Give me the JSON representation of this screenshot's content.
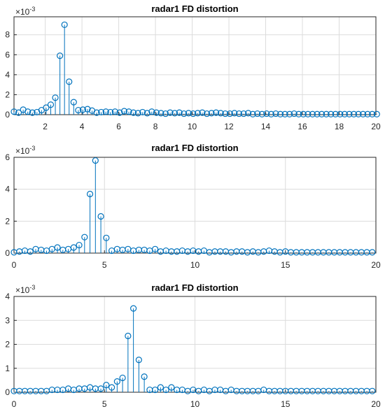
{
  "colors": {
    "series": "#0072BD",
    "axis": "#262626",
    "grid": "#dcdcdc"
  },
  "chart_data": [
    {
      "type": "stem",
      "title": "radar1 FD distortion",
      "y_exponent_label": "×10",
      "y_exponent_power": "-3",
      "xlim": [
        0.3,
        20
      ],
      "ylim": [
        0,
        9.8
      ],
      "xticks": [
        2,
        4,
        6,
        8,
        10,
        12,
        14,
        16,
        18,
        20
      ],
      "xtick_labels": [
        "2",
        "4",
        "6",
        "8",
        "10",
        "12",
        "14",
        "16",
        "18",
        "20"
      ],
      "yticks": [
        0,
        2,
        4,
        6,
        8
      ],
      "ytick_labels": [
        "0",
        "2",
        "4",
        "6",
        "8"
      ],
      "grid": true,
      "x": [
        0.3,
        0.55,
        0.8,
        1.05,
        1.3,
        1.55,
        1.8,
        2.05,
        2.3,
        2.55,
        2.8,
        3.05,
        3.3,
        3.55,
        3.8,
        4.05,
        4.3,
        4.55,
        4.8,
        5.05,
        5.3,
        5.55,
        5.8,
        6.05,
        6.3,
        6.55,
        6.8,
        7.05,
        7.3,
        7.55,
        7.8,
        8.05,
        8.3,
        8.55,
        8.8,
        9.05,
        9.3,
        9.55,
        9.8,
        10.05,
        10.3,
        10.55,
        10.8,
        11.05,
        11.3,
        11.55,
        11.8,
        12.05,
        12.3,
        12.55,
        12.8,
        13.05,
        13.3,
        13.55,
        13.8,
        14.05,
        14.3,
        14.55,
        14.8,
        15.05,
        15.3,
        15.55,
        15.8,
        16.05,
        16.3,
        16.55,
        16.8,
        17.05,
        17.3,
        17.55,
        17.8,
        18.05,
        18.3,
        18.55,
        18.8,
        19.05,
        19.3,
        19.55,
        19.8,
        20.05
      ],
      "values": [
        0.3,
        0.2,
        0.5,
        0.3,
        0.2,
        0.25,
        0.45,
        0.7,
        1.0,
        1.7,
        5.9,
        9.0,
        3.3,
        1.25,
        0.45,
        0.5,
        0.55,
        0.4,
        0.2,
        0.25,
        0.3,
        0.25,
        0.3,
        0.2,
        0.35,
        0.3,
        0.2,
        0.15,
        0.25,
        0.15,
        0.3,
        0.2,
        0.15,
        0.1,
        0.2,
        0.15,
        0.2,
        0.1,
        0.15,
        0.1,
        0.15,
        0.2,
        0.1,
        0.15,
        0.2,
        0.15,
        0.1,
        0.1,
        0.15,
        0.1,
        0.1,
        0.15,
        0.05,
        0.1,
        0.05,
        0.1,
        0.05,
        0.1,
        0.05,
        0.05,
        0.05,
        0.1,
        0.05,
        0.05,
        0.05,
        0.05,
        0.05,
        0.05,
        0.05,
        0.05,
        0.05,
        0.05,
        0.05,
        0.05,
        0.05,
        0.05,
        0.05,
        0.05,
        0.05,
        0.05
      ]
    },
    {
      "type": "stem",
      "title": "radar1 FD distortion",
      "y_exponent_label": "×10",
      "y_exponent_power": "-3",
      "xlim": [
        0,
        20
      ],
      "ylim": [
        0,
        6
      ],
      "xticks": [
        0,
        5,
        10,
        15,
        20
      ],
      "xtick_labels": [
        "0",
        "5",
        "10",
        "15",
        "20"
      ],
      "yticks": [
        0,
        2,
        4,
        6
      ],
      "ytick_labels": [
        "0",
        "2",
        "4",
        "6"
      ],
      "grid": true,
      "x": [
        0,
        0.3,
        0.6,
        0.9,
        1.2,
        1.5,
        1.8,
        2.1,
        2.4,
        2.7,
        3.0,
        3.3,
        3.6,
        3.9,
        4.2,
        4.5,
        4.8,
        5.1,
        5.4,
        5.7,
        6.0,
        6.3,
        6.6,
        6.9,
        7.2,
        7.5,
        7.8,
        8.1,
        8.4,
        8.7,
        9.0,
        9.3,
        9.6,
        9.9,
        10.2,
        10.5,
        10.8,
        11.1,
        11.4,
        11.7,
        12.0,
        12.3,
        12.6,
        12.9,
        13.2,
        13.5,
        13.8,
        14.1,
        14.4,
        14.7,
        15.0,
        15.3,
        15.6,
        15.9,
        16.2,
        16.5,
        16.8,
        17.1,
        17.4,
        17.7,
        18.0,
        18.3,
        18.6,
        18.9,
        19.2,
        19.5,
        19.8
      ],
      "values": [
        0.05,
        0.1,
        0.15,
        0.1,
        0.25,
        0.2,
        0.15,
        0.25,
        0.35,
        0.2,
        0.25,
        0.35,
        0.5,
        1.0,
        3.7,
        5.8,
        2.3,
        0.95,
        0.15,
        0.25,
        0.2,
        0.25,
        0.15,
        0.2,
        0.2,
        0.15,
        0.25,
        0.1,
        0.15,
        0.1,
        0.1,
        0.15,
        0.1,
        0.15,
        0.1,
        0.15,
        0.05,
        0.1,
        0.1,
        0.1,
        0.05,
        0.1,
        0.1,
        0.05,
        0.1,
        0.05,
        0.1,
        0.15,
        0.1,
        0.05,
        0.1,
        0.05,
        0.05,
        0.05,
        0.05,
        0.05,
        0.05,
        0.05,
        0.05,
        0.05,
        0.05,
        0.05,
        0.05,
        0.05,
        0.05,
        0.05,
        0.05
      ]
    },
    {
      "type": "stem",
      "title": "radar1 FD distortion",
      "y_exponent_label": "×10",
      "y_exponent_power": "-3",
      "xlim": [
        0,
        20
      ],
      "ylim": [
        0,
        4
      ],
      "xticks": [
        0,
        5,
        10,
        15,
        20
      ],
      "xtick_labels": [
        "0",
        "5",
        "10",
        "15",
        "20"
      ],
      "yticks": [
        0,
        1,
        2,
        3,
        4
      ],
      "ytick_labels": [
        "0",
        "1",
        "2",
        "3",
        "4"
      ],
      "grid": true,
      "x": [
        0,
        0.3,
        0.6,
        0.9,
        1.2,
        1.5,
        1.8,
        2.1,
        2.4,
        2.7,
        3.0,
        3.3,
        3.6,
        3.9,
        4.2,
        4.5,
        4.8,
        5.1,
        5.4,
        5.7,
        6.0,
        6.3,
        6.6,
        6.9,
        7.2,
        7.5,
        7.8,
        8.1,
        8.4,
        8.7,
        9.0,
        9.3,
        9.6,
        9.9,
        10.2,
        10.5,
        10.8,
        11.1,
        11.4,
        11.7,
        12.0,
        12.3,
        12.6,
        12.9,
        13.2,
        13.5,
        13.8,
        14.1,
        14.4,
        14.7,
        15.0,
        15.3,
        15.6,
        15.9,
        16.2,
        16.5,
        16.8,
        17.1,
        17.4,
        17.7,
        18.0,
        18.3,
        18.6,
        18.9,
        19.2,
        19.5,
        19.8
      ],
      "values": [
        0.05,
        0.05,
        0.05,
        0.05,
        0.05,
        0.05,
        0.05,
        0.1,
        0.1,
        0.1,
        0.15,
        0.1,
        0.15,
        0.15,
        0.2,
        0.15,
        0.15,
        0.3,
        0.2,
        0.45,
        0.6,
        2.35,
        3.5,
        1.35,
        0.65,
        0.1,
        0.1,
        0.2,
        0.1,
        0.2,
        0.1,
        0.1,
        0.05,
        0.1,
        0.05,
        0.1,
        0.05,
        0.1,
        0.1,
        0.05,
        0.1,
        0.05,
        0.05,
        0.05,
        0.05,
        0.05,
        0.1,
        0.05,
        0.05,
        0.05,
        0.05,
        0.05,
        0.05,
        0.05,
        0.05,
        0.05,
        0.05,
        0.05,
        0.05,
        0.05,
        0.05,
        0.05,
        0.05,
        0.05,
        0.05,
        0.05,
        0.05
      ]
    }
  ]
}
